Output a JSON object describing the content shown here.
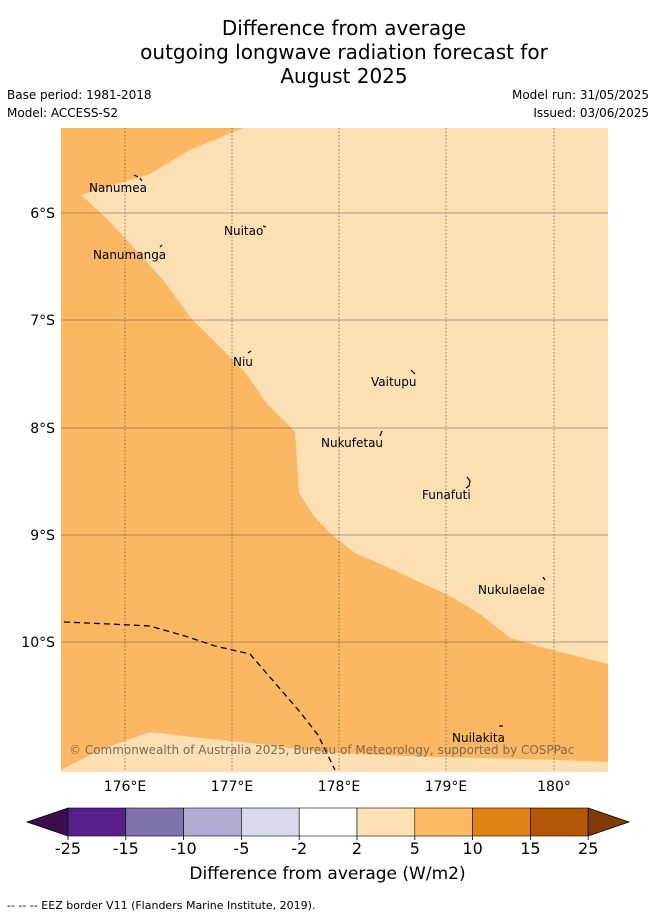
{
  "header": {
    "title_lines": [
      "Difference from average",
      "outgoing longwave radiation forecast for",
      "August 2025"
    ],
    "base_period": "Base period: 1981-2018",
    "model": "Model: ACCESS-S2",
    "model_run": "Model run: 31/05/2025",
    "issued": "Issued: 03/06/2025"
  },
  "map": {
    "lon_ticks": [
      "176°E",
      "177°E",
      "178°E",
      "179°E",
      "180°"
    ],
    "lat_ticks": [
      "6°S",
      "7°S",
      "8°S",
      "9°S",
      "10°S"
    ],
    "places": [
      {
        "name": "Nanumea"
      },
      {
        "name": "Nuitao"
      },
      {
        "name": "Nanumanga"
      },
      {
        "name": "Niu"
      },
      {
        "name": "Vaitupu"
      },
      {
        "name": "Nukufetau"
      },
      {
        "name": "Funafuti"
      },
      {
        "name": "Nukulaelae"
      },
      {
        "name": "Nuilakita"
      }
    ],
    "copyright": "© Commonwealth of Australia 2025, Bureau of Meteorology, supported by COSPPac",
    "colors": {
      "band_2_5": "#fddfb4",
      "band_5_10": "#fcb762",
      "eez_line": "#000000",
      "grid": "#555555"
    }
  },
  "colorbar": {
    "ticks": [
      "-25",
      "-15",
      "-10",
      "-5",
      "-2",
      "2",
      "5",
      "10",
      "15",
      "25"
    ],
    "colors": [
      "#3b0f4f",
      "#57208a",
      "#8073ac",
      "#b2abd2",
      "#d8daeb",
      "#ffffff",
      "#fee0b6",
      "#fdb863",
      "#e08214",
      "#b35806",
      "#7f3b08"
    ],
    "label": "Difference from average (W/m2)"
  },
  "footer": {
    "legend": "--  --  -- EEZ border V11 (Flanders Marine Institute, 2019)."
  }
}
